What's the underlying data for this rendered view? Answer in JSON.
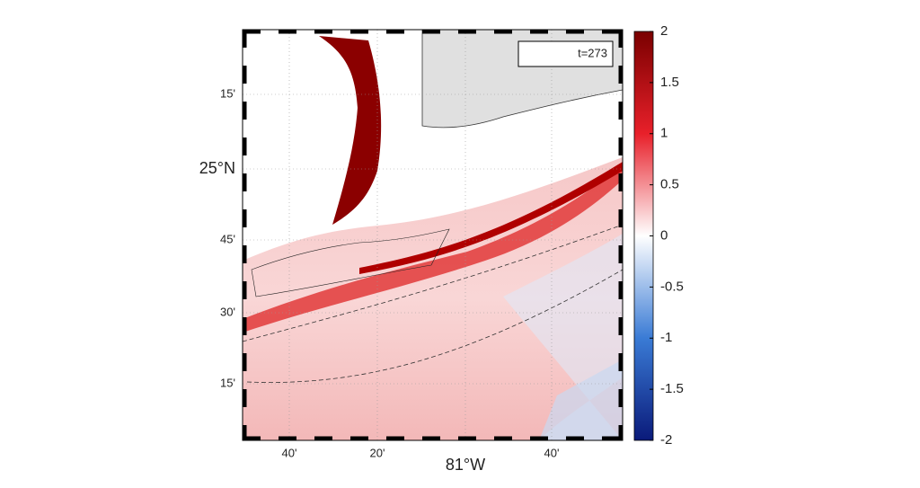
{
  "map": {
    "annotation": "t=273",
    "y_labels": [
      "15'",
      "25°N",
      "45'",
      "30'",
      "15'"
    ],
    "x_labels": [
      "40'",
      "20'",
      "81°W",
      "40'"
    ],
    "colorbar": {
      "ylim": [
        -2,
        2
      ],
      "yticks": [
        2,
        1.5,
        1,
        0.5,
        0,
        -0.5,
        -1,
        -1.5,
        -2
      ]
    }
  }
}
